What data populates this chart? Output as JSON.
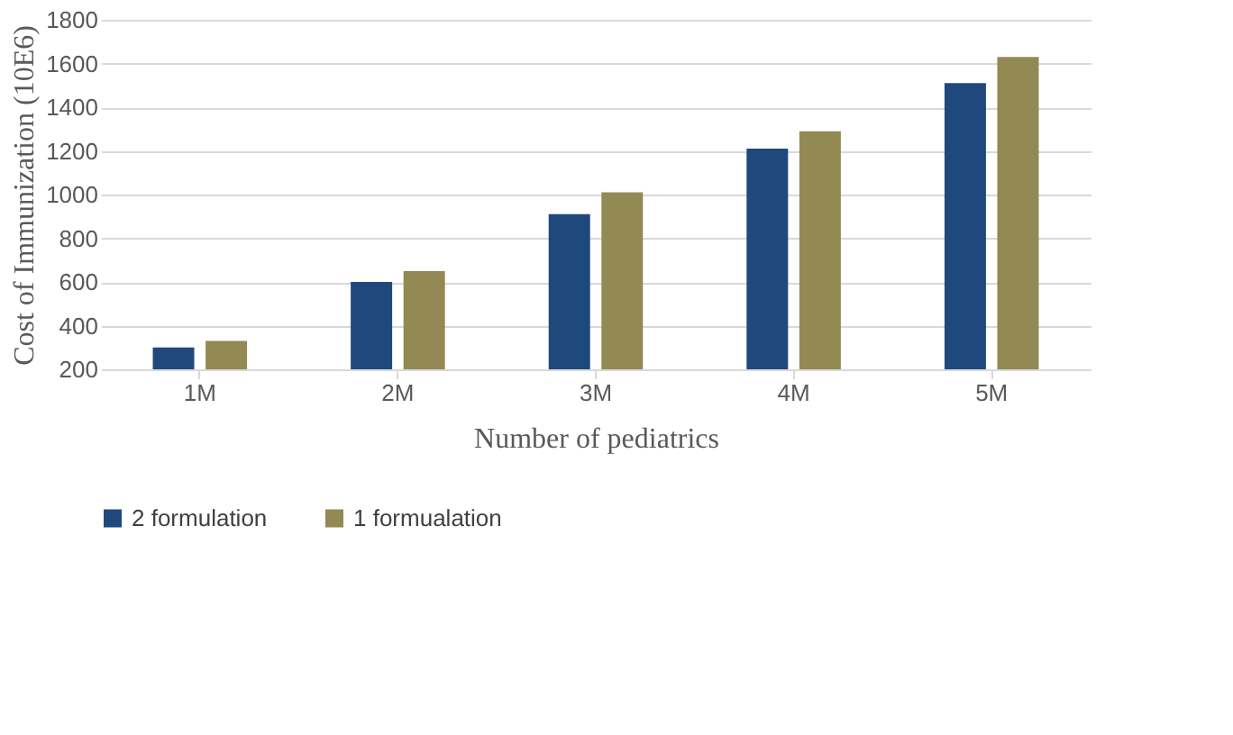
{
  "chart_data": {
    "type": "bar",
    "xlabel": "Number of pediatrics",
    "ylabel": "Cost of Immunization (10E6)",
    "categories": [
      "1M",
      "2M",
      "3M",
      "4M",
      "5M"
    ],
    "series": [
      {
        "name": "2 formulation",
        "color": "#1f497d",
        "values": [
          300,
          600,
          910,
          1210,
          1510
        ]
      },
      {
        "name": "1 formualation",
        "color": "#938953",
        "values": [
          330,
          650,
          1010,
          1290,
          1630
        ]
      }
    ],
    "ylim": [
      200,
      1800
    ],
    "yticks": [
      200,
      400,
      600,
      800,
      1000,
      1200,
      1400,
      1600,
      1800
    ],
    "grid": "y",
    "legend": "bottom"
  }
}
